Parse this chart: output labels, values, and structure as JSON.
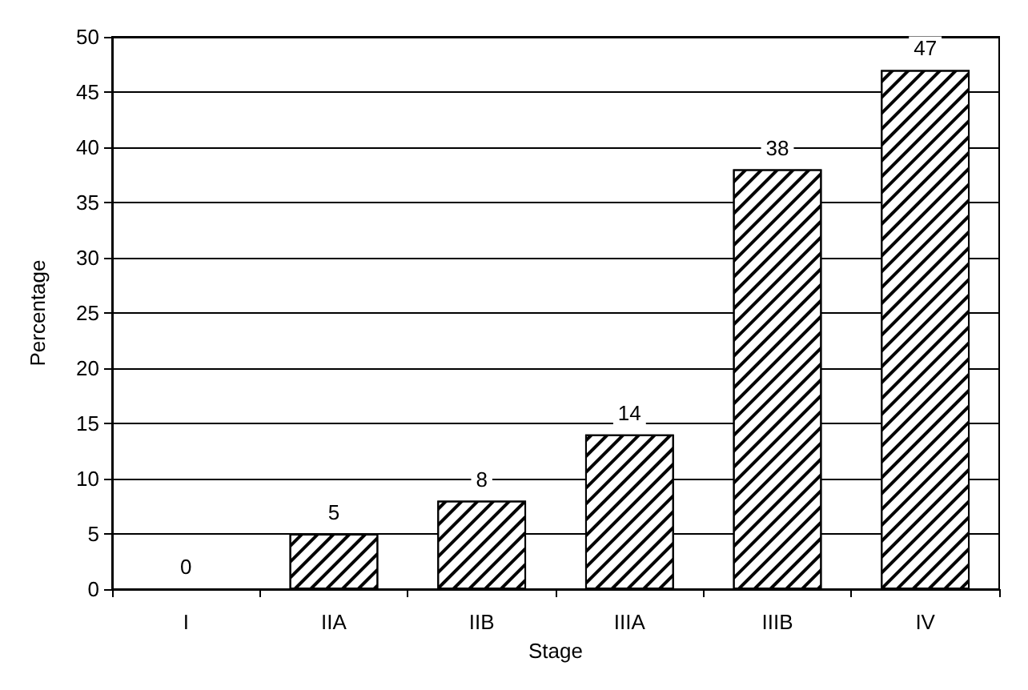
{
  "chart_data": {
    "type": "bar",
    "xlabel": "Stage",
    "ylabel": "Percentage",
    "categories": [
      "I",
      "IIA",
      "IIB",
      "IIIA",
      "IIIB",
      "IV"
    ],
    "values": [
      0,
      5,
      8,
      14,
      38,
      47
    ],
    "color": "#000000",
    "ylim": [
      0,
      50
    ],
    "yticks": [
      0,
      5,
      10,
      15,
      20,
      25,
      30,
      35,
      40,
      45,
      50
    ],
    "grid": "y",
    "data_labels": true
  }
}
